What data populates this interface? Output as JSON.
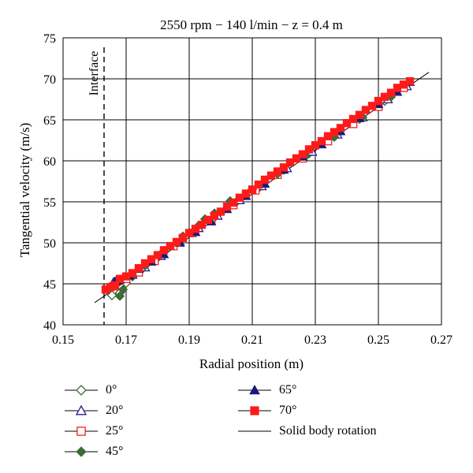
{
  "chart_data": {
    "type": "scatter",
    "title": "2550 rpm − 140 l/min − z = 0.4 m",
    "xlabel": "Radial position (m)",
    "ylabel": "Tangential velocity (m/s)",
    "xlim": [
      0.15,
      0.27
    ],
    "ylim": [
      40,
      75
    ],
    "xticks": [
      "0.15",
      "0.17",
      "0.19",
      "0.21",
      "0.23",
      "0.25",
      "0.27"
    ],
    "yticks": [
      "40",
      "45",
      "50",
      "55",
      "60",
      "65",
      "70",
      "75"
    ],
    "grid": true,
    "interface": {
      "x": 0.163,
      "label": "Interface"
    },
    "line": {
      "name": "Solid body rotation",
      "x": [
        0.16,
        0.266
      ],
      "y": [
        42.7,
        70.8
      ]
    },
    "series": [
      {
        "name": "0°",
        "marker": "diamond-open",
        "color": "#3a6b35",
        "x": [
          0.1655,
          0.168,
          0.17,
          0.172,
          0.175,
          0.18,
          0.186,
          0.192,
          0.198,
          0.205,
          0.212,
          0.22,
          0.228,
          0.236,
          0.244,
          0.252,
          0.259
        ],
        "y": [
          43.6,
          43.9,
          45.1,
          45.9,
          46.8,
          48.2,
          50.0,
          51.6,
          53.1,
          55.0,
          56.7,
          58.9,
          60.9,
          63.0,
          65.1,
          67.3,
          69.3
        ]
      },
      {
        "name": "20°",
        "marker": "triangle-open",
        "color": "#1f1f8c",
        "x": [
          0.166,
          0.169,
          0.172,
          0.176,
          0.181,
          0.187,
          0.193,
          0.199,
          0.206,
          0.213,
          0.221,
          0.229,
          0.237,
          0.245,
          0.253,
          0.259
        ],
        "y": [
          45.2,
          45.6,
          46.1,
          47.0,
          48.4,
          50.1,
          51.8,
          53.3,
          55.2,
          56.9,
          59.1,
          61.1,
          63.2,
          65.3,
          67.5,
          69.1
        ]
      },
      {
        "name": "25°",
        "marker": "square-open",
        "color": "#ee2222",
        "x": [
          0.166,
          0.17,
          0.174,
          0.179,
          0.185,
          0.191,
          0.197,
          0.204,
          0.211,
          0.218,
          0.226,
          0.234,
          0.242,
          0.25,
          0.258
        ],
        "y": [
          44.7,
          45.6,
          46.4,
          47.8,
          49.6,
          51.2,
          52.7,
          54.6,
          56.4,
          58.3,
          60.3,
          62.4,
          64.5,
          66.6,
          68.9
        ]
      },
      {
        "name": "45°",
        "marker": "diamond-filled",
        "color": "#3d6b3a",
        "x": [
          0.168,
          0.169,
          0.172,
          0.176,
          0.182,
          0.188,
          0.193,
          0.195,
          0.198,
          0.203,
          0.21,
          0.218,
          0.227,
          0.236,
          0.245,
          0.254
        ],
        "y": [
          43.5,
          44.3,
          46.0,
          47.2,
          49.0,
          50.8,
          52.1,
          52.9,
          53.6,
          55.1,
          56.5,
          58.4,
          60.6,
          62.9,
          65.3,
          67.8
        ]
      },
      {
        "name": "65°",
        "marker": "triangle-filled",
        "color": "#1a1a7a",
        "x": [
          0.1665,
          0.168,
          0.171,
          0.174,
          0.178,
          0.182,
          0.187,
          0.192,
          0.197,
          0.202,
          0.208,
          0.214,
          0.22,
          0.226,
          0.232,
          0.238,
          0.244,
          0.25,
          0.256,
          0.26
        ],
        "y": [
          45.3,
          45.5,
          46.0,
          46.8,
          47.7,
          48.6,
          50.0,
          51.3,
          52.6,
          54.1,
          55.7,
          57.2,
          58.9,
          60.5,
          62.0,
          63.6,
          65.2,
          66.9,
          68.4,
          69.6
        ]
      },
      {
        "name": "70°",
        "marker": "square-filled",
        "color": "#ff1a1a",
        "x": [
          0.1635,
          0.165,
          0.1665,
          0.168,
          0.17,
          0.172,
          0.174,
          0.176,
          0.178,
          0.18,
          0.182,
          0.184,
          0.186,
          0.188,
          0.19,
          0.192,
          0.194,
          0.196,
          0.198,
          0.2,
          0.202,
          0.204,
          0.206,
          0.208,
          0.21,
          0.212,
          0.214,
          0.216,
          0.218,
          0.22,
          0.222,
          0.224,
          0.226,
          0.228,
          0.23,
          0.232,
          0.234,
          0.236,
          0.238,
          0.24,
          0.242,
          0.244,
          0.246,
          0.248,
          0.25,
          0.252,
          0.254,
          0.256,
          0.258,
          0.26
        ],
        "y": [
          44.3,
          44.6,
          44.8,
          45.6,
          45.9,
          46.3,
          46.9,
          47.5,
          48.0,
          48.5,
          49.1,
          49.6,
          50.1,
          50.6,
          51.2,
          51.7,
          52.2,
          52.8,
          53.3,
          53.8,
          54.4,
          54.9,
          55.5,
          56.0,
          56.5,
          57.1,
          57.7,
          58.2,
          58.7,
          59.2,
          59.8,
          60.3,
          60.8,
          61.4,
          61.9,
          62.4,
          63.0,
          63.5,
          64.0,
          64.6,
          65.1,
          65.6,
          66.2,
          66.7,
          67.3,
          67.8,
          68.3,
          68.9,
          69.3,
          69.7
        ]
      }
    ]
  }
}
